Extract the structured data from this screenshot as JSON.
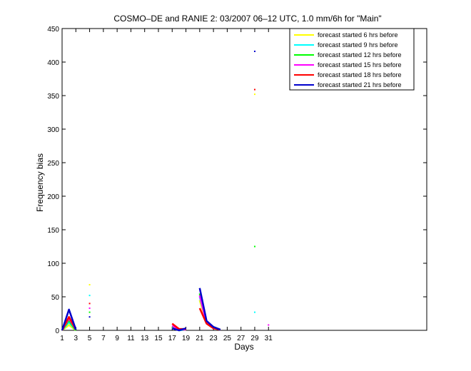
{
  "chart_data": {
    "type": "line",
    "title": "COSMO–DE and RANIE 2: 03/2007 06–12 UTC, 1.0 mm/6h for \"Main\"",
    "xlabel": "Days",
    "ylabel": "Frequency bias",
    "xlim": [
      1,
      54
    ],
    "ylim": [
      0,
      450
    ],
    "xticks": [
      1,
      3,
      5,
      7,
      9,
      11,
      13,
      15,
      17,
      19,
      21,
      23,
      25,
      27,
      29,
      31
    ],
    "yticks": [
      0,
      50,
      100,
      150,
      200,
      250,
      300,
      350,
      400,
      450
    ],
    "grid": false,
    "legend_position": "top-right",
    "series": [
      {
        "name": "forecast started 6 hrs before",
        "color": "#ffff00",
        "points": [
          [
            1,
            0
          ],
          [
            2,
            8
          ],
          [
            3,
            0
          ],
          [
            5,
            68
          ],
          [
            17,
            4
          ],
          [
            18,
            0
          ],
          [
            19,
            1
          ],
          [
            21,
            45
          ],
          [
            22,
            11
          ],
          [
            23,
            4
          ],
          [
            24,
            1
          ],
          [
            29,
            352
          ]
        ]
      },
      {
        "name": "forecast started 9 hrs before",
        "color": "#00ffff",
        "points": [
          [
            1,
            0
          ],
          [
            2,
            12
          ],
          [
            3,
            0
          ],
          [
            5,
            52
          ],
          [
            17,
            5
          ],
          [
            18,
            0
          ],
          [
            19,
            1
          ],
          [
            21,
            50
          ],
          [
            22,
            12
          ],
          [
            23,
            4
          ],
          [
            24,
            1
          ],
          [
            29,
            27
          ]
        ]
      },
      {
        "name": "forecast started 12 hrs before",
        "color": "#00ff00",
        "points": [
          [
            1,
            0
          ],
          [
            2,
            15
          ],
          [
            3,
            0
          ],
          [
            5,
            27
          ],
          [
            17,
            6
          ],
          [
            18,
            1
          ],
          [
            19,
            1
          ],
          [
            21,
            55
          ],
          [
            22,
            12
          ],
          [
            23,
            5
          ],
          [
            24,
            1
          ],
          [
            29,
            125
          ]
        ]
      },
      {
        "name": "forecast started 15 hrs before",
        "color": "#ff00ff",
        "points": [
          [
            1,
            0
          ],
          [
            2,
            18
          ],
          [
            3,
            1
          ],
          [
            5,
            33
          ],
          [
            17,
            7
          ],
          [
            18,
            1
          ],
          [
            19,
            1
          ],
          [
            21,
            52
          ],
          [
            22,
            11
          ],
          [
            23,
            4
          ],
          [
            24,
            1
          ],
          [
            31,
            8
          ]
        ]
      },
      {
        "name": "forecast started 18 hrs before",
        "color": "#ff0000",
        "points": [
          [
            1,
            0
          ],
          [
            2,
            20
          ],
          [
            3,
            1
          ],
          [
            5,
            40
          ],
          [
            17,
            10
          ],
          [
            18,
            2
          ],
          [
            19,
            2
          ],
          [
            21,
            33
          ],
          [
            22,
            10
          ],
          [
            23,
            3
          ],
          [
            24,
            1
          ],
          [
            29,
            359
          ]
        ]
      },
      {
        "name": "forecast started 21 hrs before",
        "color": "#0000cc",
        "points": [
          [
            1,
            0
          ],
          [
            2,
            31
          ],
          [
            3,
            1
          ],
          [
            5,
            20
          ],
          [
            17,
            3
          ],
          [
            18,
            0
          ],
          [
            19,
            3
          ],
          [
            21,
            63
          ],
          [
            22,
            14
          ],
          [
            23,
            5
          ],
          [
            24,
            1
          ],
          [
            29,
            416
          ]
        ]
      }
    ]
  }
}
